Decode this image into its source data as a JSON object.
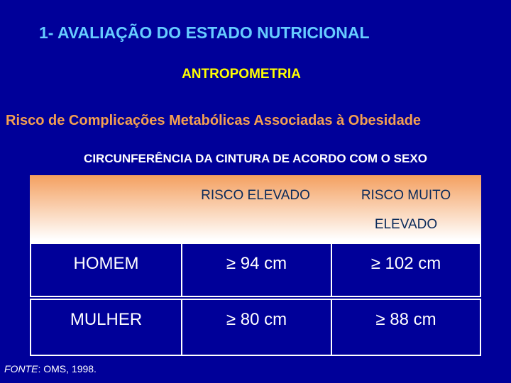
{
  "slide": {
    "title": "1- AVALIAÇÃO DO ESTADO NUTRICIONAL",
    "subtitle": "ANTROPOMETRIA",
    "heading": "Risco de Complicações Metabólicas Associadas à Obesidade",
    "table_caption": "CIRCUNFERÊNCIA DA CINTURA DE ACORDO COM O SEXO"
  },
  "table": {
    "headers": [
      "",
      "RISCO ELEVADO",
      "RISCO MUITO",
      "ELEVADO"
    ],
    "rows": [
      {
        "label": "HOMEM",
        "elevado": "≥ 94 cm",
        "muito_elevado": "≥ 102 cm"
      },
      {
        "label": "MULHER",
        "elevado": "≥ 80 cm",
        "muito_elevado": "≥ 88 cm"
      }
    ]
  },
  "source": {
    "label": "FONTE",
    "text": ": OMS, 1998."
  },
  "colors": {
    "background": "#000099",
    "title": "#66ccff",
    "subtitle": "#ffff00",
    "heading": "#f4a050",
    "header_gradient_top": "#f4a060"
  }
}
